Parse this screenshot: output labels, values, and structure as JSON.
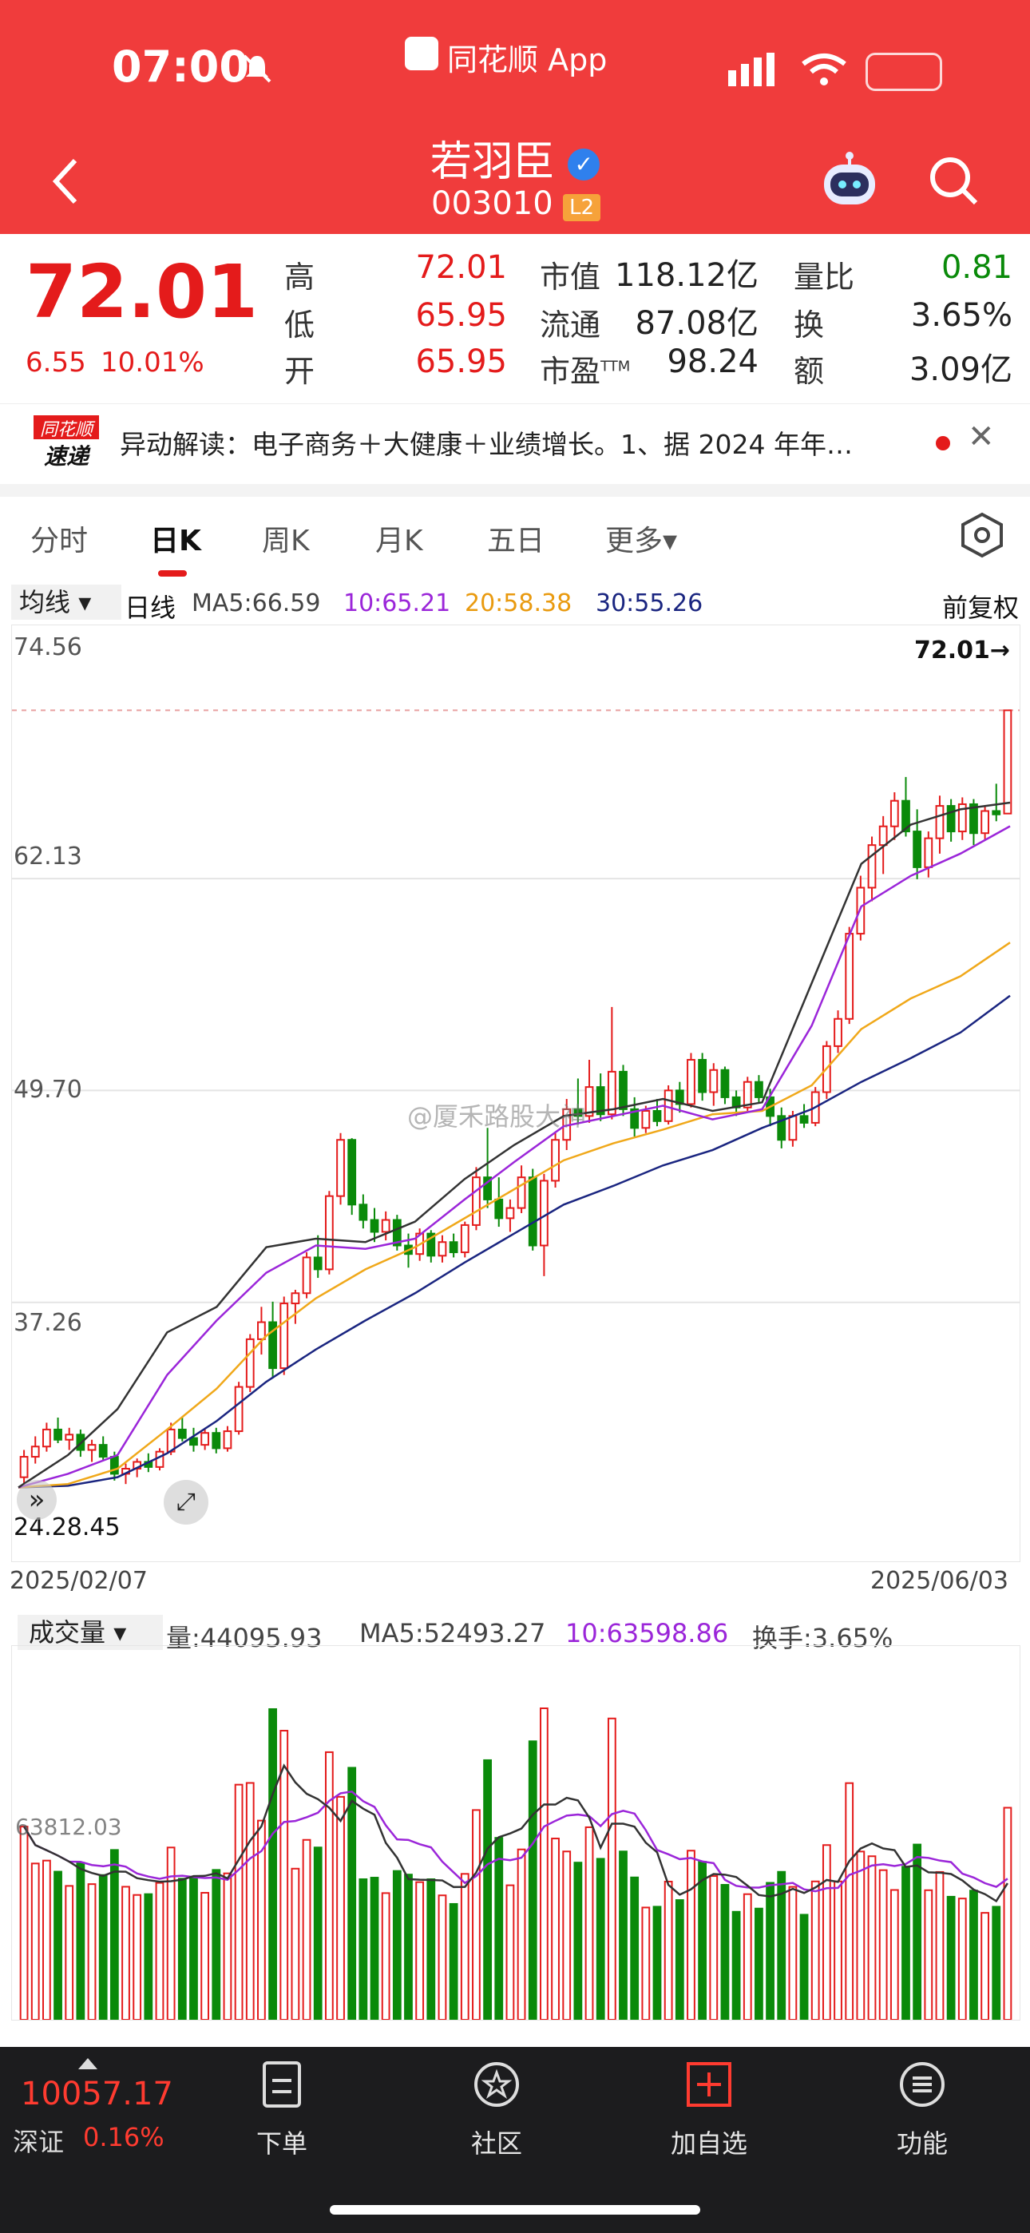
{
  "status": {
    "time": "07:00"
  },
  "header": {
    "app_name": "同花顺 App",
    "stock_name": "若羽臣",
    "stock_code": "003010",
    "level_badge": "L2"
  },
  "quote": {
    "price": "72.01",
    "change": "6.55",
    "change_pct": "10.01%",
    "high_label": "高",
    "high": "72.01",
    "low_label": "低",
    "low": "65.95",
    "open_label": "开",
    "open": "65.95",
    "mktcap_label": "市值",
    "mktcap": "118.12亿",
    "float_label": "流通",
    "float": "87.08亿",
    "pe_label": "市盈",
    "pe_sup": "TTM",
    "pe": "98.24",
    "volratio_label": "量比",
    "volratio": "0.81",
    "turnover_label": "换",
    "turnover": "3.65%",
    "amount_label": "额",
    "amount": "3.09亿"
  },
  "news": {
    "logo_top": "同花顺",
    "logo_bottom": "速递",
    "text": "异动解读：电子商务＋大健康＋业绩增长。1、据 2024 年年…"
  },
  "tabs": [
    {
      "label": "分时"
    },
    {
      "label": "日K"
    },
    {
      "label": "周K"
    },
    {
      "label": "月K"
    },
    {
      "label": "五日"
    },
    {
      "label": "更多▾"
    }
  ],
  "kline_legend": {
    "selector": "均线",
    "period": "日线",
    "ma5": "MA5:66.59",
    "ma10": "10:65.21",
    "ma20": "20:58.38",
    "ma30": "30:55.26",
    "adjust": "前复权"
  },
  "y_axis": {
    "top": "74.56",
    "l2": "62.13",
    "l3": "49.70",
    "l4": "37.26",
    "bottom": "24.28.45",
    "last_price": "72.01→"
  },
  "dates": {
    "start": "2025/02/07",
    "end": "2025/06/03"
  },
  "volume_legend": {
    "selector": "成交量",
    "vol": "量:44095.93",
    "ma5": "MA5:52493.27",
    "ma10": "10:63598.86",
    "turnover": "换手:3.65%",
    "axis_label": "63812.03"
  },
  "watermark": "@厦禾路股大神",
  "bottom": {
    "index_value": "10057.17",
    "index_name": "深证",
    "index_pct": "0.16%",
    "nav": [
      {
        "label": "下单"
      },
      {
        "label": "社区"
      },
      {
        "label": "加自选"
      },
      {
        "label": "功能"
      }
    ]
  },
  "colors": {
    "up": "#e41b1b",
    "down": "#0a8a0a",
    "ma5": "#333333",
    "ma10": "#9b26d9",
    "ma20": "#f0a81a",
    "ma30": "#1a2580",
    "header": "#f03c3c"
  },
  "chart_data": {
    "type": "candlestick",
    "ylim": [
      24.5,
      74.56
    ],
    "ohlc": [
      [
        27.0,
        28.6,
        26.5,
        28.2
      ],
      [
        28.2,
        29.4,
        27.8,
        28.8
      ],
      [
        28.8,
        30.2,
        28.5,
        29.8
      ],
      [
        29.8,
        30.5,
        29.0,
        29.2
      ],
      [
        29.2,
        29.9,
        28.6,
        29.5
      ],
      [
        29.5,
        29.8,
        28.2,
        28.6
      ],
      [
        28.6,
        29.2,
        27.9,
        28.9
      ],
      [
        28.9,
        29.4,
        28.0,
        28.2
      ],
      [
        28.2,
        28.5,
        26.8,
        27.2
      ],
      [
        27.2,
        27.8,
        26.6,
        27.5
      ],
      [
        27.5,
        28.1,
        27.0,
        27.9
      ],
      [
        27.9,
        28.4,
        27.3,
        27.6
      ],
      [
        27.6,
        28.7,
        27.4,
        28.5
      ],
      [
        28.5,
        30.2,
        28.3,
        29.8
      ],
      [
        29.8,
        30.5,
        29.1,
        29.3
      ],
      [
        29.3,
        29.9,
        28.5,
        28.9
      ],
      [
        28.9,
        29.8,
        28.6,
        29.6
      ],
      [
        29.6,
        29.9,
        28.4,
        28.7
      ],
      [
        28.7,
        30.0,
        28.5,
        29.7
      ],
      [
        29.7,
        32.6,
        29.5,
        32.3
      ],
      [
        32.3,
        35.4,
        32.0,
        35.1
      ],
      [
        35.1,
        37.0,
        34.2,
        36.1
      ],
      [
        36.1,
        37.3,
        32.8,
        33.4
      ],
      [
        33.4,
        37.6,
        33.0,
        37.2
      ],
      [
        37.2,
        38.0,
        36.0,
        37.8
      ],
      [
        37.8,
        40.2,
        37.5,
        39.9
      ],
      [
        39.9,
        41.2,
        38.7,
        39.2
      ],
      [
        39.2,
        43.8,
        38.9,
        43.5
      ],
      [
        43.5,
        47.2,
        43.0,
        46.8
      ],
      [
        46.8,
        46.9,
        42.4,
        43.0
      ],
      [
        43.0,
        43.6,
        41.6,
        42.1
      ],
      [
        42.1,
        42.8,
        40.8,
        41.4
      ],
      [
        41.4,
        42.6,
        40.9,
        42.1
      ],
      [
        42.1,
        42.4,
        40.3,
        40.6
      ],
      [
        40.6,
        41.3,
        39.3,
        40.1
      ],
      [
        40.1,
        41.6,
        39.7,
        41.3
      ],
      [
        41.3,
        41.5,
        39.6,
        40.0
      ],
      [
        40.0,
        41.2,
        39.6,
        40.8
      ],
      [
        40.8,
        41.3,
        39.9,
        40.2
      ],
      [
        40.2,
        42.0,
        39.9,
        41.8
      ],
      [
        41.8,
        45.2,
        41.5,
        44.6
      ],
      [
        44.6,
        47.5,
        42.8,
        43.3
      ],
      [
        43.3,
        44.6,
        41.7,
        42.2
      ],
      [
        42.2,
        43.3,
        41.4,
        42.8
      ],
      [
        42.8,
        45.3,
        42.5,
        44.6
      ],
      [
        44.6,
        45.1,
        40.3,
        40.6
      ],
      [
        40.6,
        44.8,
        38.8,
        44.4
      ],
      [
        44.4,
        47.2,
        44.0,
        46.8
      ],
      [
        46.8,
        49.2,
        46.2,
        48.6
      ],
      [
        48.6,
        50.4,
        47.7,
        48.2
      ],
      [
        48.2,
        51.5,
        47.8,
        49.9
      ],
      [
        49.9,
        50.7,
        47.9,
        48.3
      ],
      [
        48.3,
        54.6,
        48.0,
        50.8
      ],
      [
        50.8,
        51.2,
        48.2,
        48.6
      ],
      [
        48.6,
        49.3,
        47.0,
        47.5
      ],
      [
        47.5,
        48.8,
        47.2,
        48.5
      ],
      [
        48.5,
        49.2,
        47.6,
        47.9
      ],
      [
        47.9,
        50.0,
        47.7,
        49.7
      ],
      [
        49.7,
        50.2,
        48.4,
        48.9
      ],
      [
        48.9,
        51.9,
        48.7,
        51.5
      ],
      [
        51.5,
        51.9,
        49.1,
        49.6
      ],
      [
        49.6,
        51.3,
        48.8,
        50.9
      ],
      [
        50.9,
        51.1,
        48.9,
        49.3
      ],
      [
        49.3,
        49.7,
        48.2,
        48.7
      ],
      [
        48.7,
        50.5,
        48.5,
        50.2
      ],
      [
        50.2,
        50.6,
        49.0,
        49.3
      ],
      [
        49.3,
        49.8,
        47.6,
        48.2
      ],
      [
        48.2,
        48.7,
        46.3,
        46.8
      ],
      [
        46.8,
        48.5,
        46.4,
        48.2
      ],
      [
        48.2,
        48.9,
        47.5,
        47.8
      ],
      [
        47.8,
        49.9,
        47.6,
        49.6
      ],
      [
        49.6,
        52.6,
        49.2,
        52.3
      ],
      [
        52.3,
        54.4,
        51.9,
        53.9
      ],
      [
        53.9,
        59.3,
        53.6,
        58.9
      ],
      [
        58.9,
        62.3,
        58.5,
        61.6
      ],
      [
        61.6,
        64.6,
        60.8,
        64.1
      ],
      [
        64.1,
        65.8,
        62.4,
        65.2
      ],
      [
        65.2,
        67.2,
        64.4,
        66.7
      ],
      [
        66.7,
        68.1,
        64.6,
        64.9
      ],
      [
        64.9,
        66.2,
        62.1,
        62.8
      ],
      [
        62.8,
        64.9,
        62.2,
        64.5
      ],
      [
        64.5,
        67.0,
        63.6,
        66.4
      ],
      [
        66.4,
        66.8,
        64.3,
        64.9
      ],
      [
        64.9,
        66.9,
        64.4,
        66.5
      ],
      [
        66.5,
        66.8,
        64.1,
        64.8
      ],
      [
        64.8,
        66.4,
        64.4,
        66.1
      ],
      [
        66.1,
        67.7,
        65.5,
        65.9
      ],
      [
        65.95,
        72.01,
        65.95,
        72.01
      ]
    ],
    "ma5": [
      26.4,
      28.3,
      31.0,
      35.5,
      37.0,
      40.5,
      41.0,
      40.8,
      42.0,
      44.5,
      46.5,
      48.2,
      48.6,
      49.2,
      48.5,
      49.0,
      56.0,
      63.0,
      65.3,
      66.2,
      66.59
    ],
    "ma10": [
      26.4,
      27.2,
      28.3,
      33.0,
      36.2,
      39.0,
      40.6,
      40.4,
      41.0,
      43.3,
      45.5,
      47.6,
      48.2,
      48.8,
      48.0,
      48.6,
      53.5,
      60.5,
      62.3,
      63.6,
      65.21
    ],
    "ma20": [
      26.4,
      26.6,
      27.5,
      29.8,
      32.2,
      35.3,
      37.5,
      39.2,
      40.5,
      42.2,
      43.9,
      45.6,
      46.6,
      47.4,
      48.3,
      48.5,
      50.0,
      53.3,
      55.1,
      56.4,
      58.38
    ],
    "ma30": [
      26.4,
      26.5,
      27.0,
      28.4,
      30.3,
      32.6,
      34.5,
      36.2,
      37.8,
      39.6,
      41.3,
      43.0,
      44.1,
      45.3,
      46.2,
      47.5,
      48.6,
      50.2,
      51.6,
      53.1,
      55.26
    ],
    "volume_labels": {
      "current": "44095.93",
      "ma5": "52493.27",
      "ma10": "63598.86"
    }
  }
}
